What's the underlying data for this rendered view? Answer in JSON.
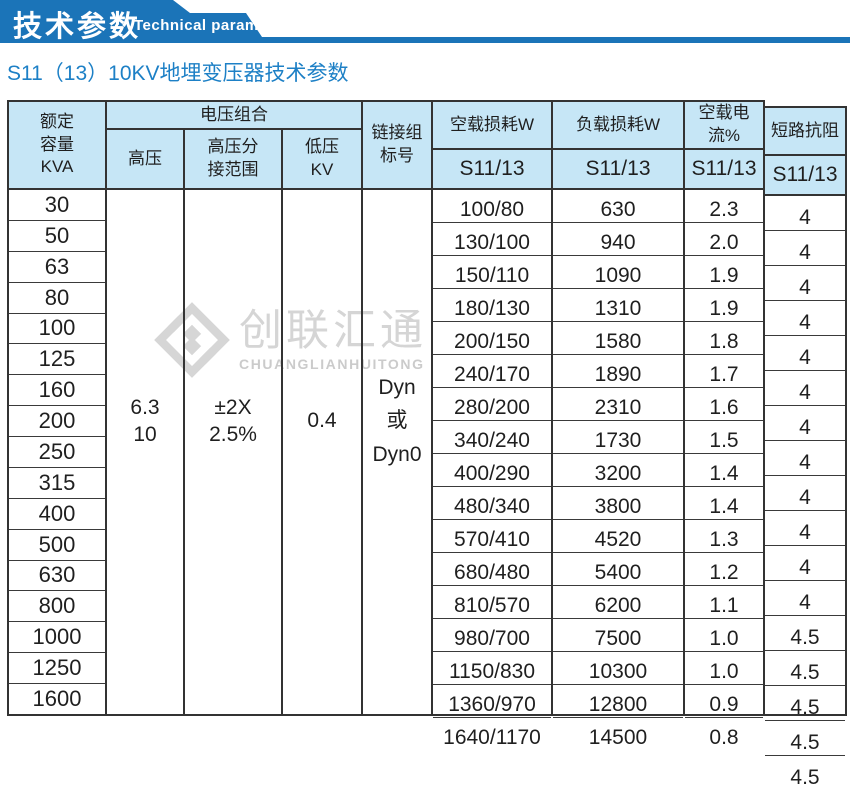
{
  "banner": {
    "title": "技术参数",
    "subtitle_en": "Technical parameter",
    "color": "#1b74b8"
  },
  "page_title": "S11（13）10KV地埋变压器技术参数",
  "watermark": {
    "cn": "创联汇通",
    "en": "CHUANGLIANHUITONG",
    "color": "#d5d5d5"
  },
  "table": {
    "header_bg": "#c6e6f6",
    "border_color": "#333333",
    "headers": {
      "kva": "额定\n容量\nKVA",
      "voltage_group": "电压组合",
      "hv": "高压",
      "tap": "高压分\n接范围",
      "lv": "低压\nKV",
      "link": "链接组\n标号",
      "noload": "空载损耗W",
      "load": "负载损耗W",
      "current": "空载电流%",
      "impedance": "短路抗阻",
      "s11": "S11/13"
    },
    "merged": {
      "hv": "6.3\n10",
      "tap": "±2X\n2.5%",
      "lv": "0.4",
      "link": "Dyn\n或\nDyn0"
    },
    "rows": [
      {
        "kva": "30",
        "noload": "100/80",
        "load": "630",
        "current": "2.3",
        "impedance": "4"
      },
      {
        "kva": "50",
        "noload": "130/100",
        "load": "940",
        "current": "2.0",
        "impedance": "4"
      },
      {
        "kva": "63",
        "noload": "150/110",
        "load": "1090",
        "current": "1.9",
        "impedance": "4"
      },
      {
        "kva": "80",
        "noload": "180/130",
        "load": "1310",
        "current": "1.9",
        "impedance": "4"
      },
      {
        "kva": "100",
        "noload": "200/150",
        "load": "1580",
        "current": "1.8",
        "impedance": "4"
      },
      {
        "kva": "125",
        "noload": "240/170",
        "load": "1890",
        "current": "1.7",
        "impedance": "4"
      },
      {
        "kva": "160",
        "noload": "280/200",
        "load": "2310",
        "current": "1.6",
        "impedance": "4"
      },
      {
        "kva": "200",
        "noload": "340/240",
        "load": "1730",
        "current": "1.5",
        "impedance": "4"
      },
      {
        "kva": "250",
        "noload": "400/290",
        "load": "3200",
        "current": "1.4",
        "impedance": "4"
      },
      {
        "kva": "315",
        "noload": "480/340",
        "load": "3800",
        "current": "1.4",
        "impedance": "4"
      },
      {
        "kva": "400",
        "noload": "570/410",
        "load": "4520",
        "current": "1.3",
        "impedance": "4"
      },
      {
        "kva": "500",
        "noload": "680/480",
        "load": "5400",
        "current": "1.2",
        "impedance": "4"
      },
      {
        "kva": "630",
        "noload": "810/570",
        "load": "6200",
        "current": "1.1",
        "impedance": "4.5"
      },
      {
        "kva": "800",
        "noload": "980/700",
        "load": "7500",
        "current": "1.0",
        "impedance": "4.5"
      },
      {
        "kva": "1000",
        "noload": "1150/830",
        "load": "10300",
        "current": "1.0",
        "impedance": "4.5"
      },
      {
        "kva": "1250",
        "noload": "1360/970",
        "load": "12800",
        "current": "0.9",
        "impedance": "4.5"
      },
      {
        "kva": "1600",
        "noload": "1640/1170",
        "load": "14500",
        "current": "0.8",
        "impedance": "4.5"
      }
    ]
  }
}
